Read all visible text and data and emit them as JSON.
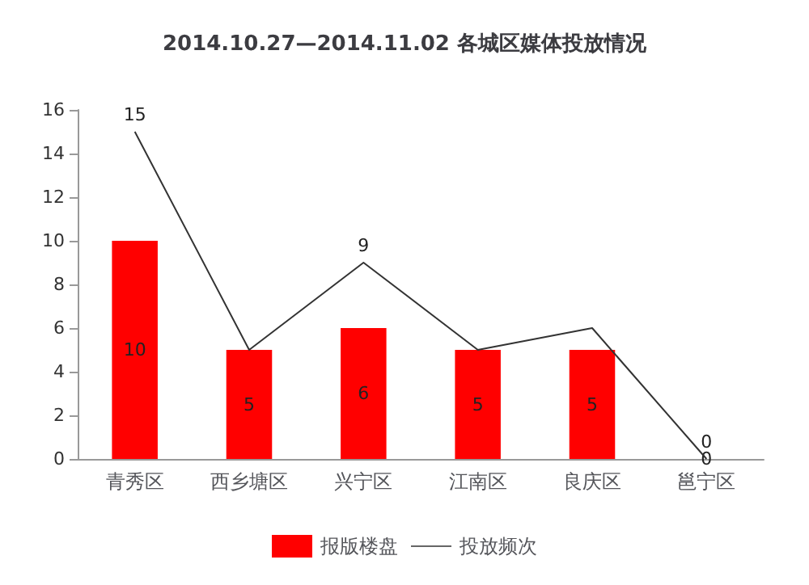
{
  "chart_data": {
    "type": "bar",
    "title": "2014.10.27—2014.11.02 各城区媒体投放情况",
    "categories": [
      "青秀区",
      "西乡塘区",
      "兴宁区",
      "江南区",
      "良庆区",
      "邕宁区"
    ],
    "series": [
      {
        "name": "报版楼盘",
        "color": "#ff0000",
        "values": [
          10,
          5,
          6,
          5,
          5,
          0
        ],
        "value_labels": [
          "10",
          "5",
          "6",
          "5",
          "5",
          "0"
        ]
      },
      {
        "name": "投放频次",
        "type": "line",
        "color": "#333333",
        "values": [
          15,
          5,
          9,
          5,
          6,
          0
        ],
        "value_labels": [
          "15",
          null,
          "9",
          null,
          null,
          "0"
        ]
      }
    ],
    "ylim": [
      0,
      16
    ],
    "yticks": [
      0,
      2,
      4,
      6,
      8,
      10,
      12,
      14,
      16
    ],
    "grid": false,
    "legend": "bottom",
    "marker": "none",
    "line_style": "solid"
  }
}
